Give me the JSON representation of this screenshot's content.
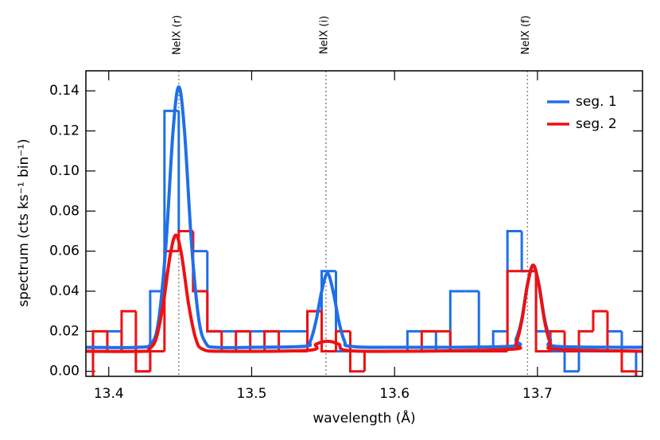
{
  "chart_data": {
    "type": "histogram",
    "xlabel": "wavelength (Å)",
    "ylabel": "spectrum (cts ks⁻¹ bin⁻¹)",
    "xlim": [
      13.384,
      13.7735
    ],
    "ylim": [
      -0.0025,
      0.15
    ],
    "xticks": [
      13.4,
      13.5,
      13.6,
      13.7
    ],
    "yticks": [
      {
        "value": 0,
        "label": "0.00"
      },
      0.02,
      0.04,
      0.06,
      0.08,
      {
        "value": 0.1,
        "label": "0.10"
      },
      0.12,
      0.14
    ],
    "legend": "upper right",
    "lines": [
      {
        "label": "NeIX (r)",
        "x": 13.449
      },
      {
        "label": "NeIX (i)",
        "x": 13.552
      },
      {
        "label": "NeIX (f)",
        "x": 13.693
      }
    ],
    "bins": [
      13.389,
      13.399,
      13.409,
      13.419,
      13.429,
      13.439,
      13.449,
      13.459,
      13.469,
      13.479,
      13.489,
      13.499,
      13.509,
      13.519,
      13.529,
      13.539,
      13.549,
      13.559,
      13.569,
      13.579,
      13.589,
      13.599,
      13.609,
      13.619,
      13.629,
      13.639,
      13.649,
      13.659,
      13.669,
      13.679,
      13.689,
      13.699,
      13.709,
      13.719,
      13.729,
      13.739,
      13.749,
      13.759,
      13.769
    ],
    "series": [
      {
        "name": "seg. 1",
        "color": "#1f6fe8",
        "values": [
          0.01,
          0.02,
          0.01,
          0,
          0.04,
          0.13,
          0.07,
          0.06,
          0.02,
          0.02,
          0.02,
          0.02,
          0.02,
          0.02,
          0.02,
          0.03,
          0.05,
          0.01,
          0.01,
          0.01,
          0.01,
          0.01,
          0.02,
          0.02,
          0.01,
          0.04,
          0.04,
          0.01,
          0.02,
          0.07,
          0.05,
          0.02,
          0.01,
          0,
          0.01,
          0.01,
          0.02,
          0.01
        ],
        "model": {
          "x": [
            13.384,
            13.42,
            13.43,
            13.435,
            13.44,
            13.445,
            13.449,
            13.453,
            13.458,
            13.463,
            13.468,
            13.475,
            13.5,
            13.537,
            13.541,
            13.545,
            13.549,
            13.553,
            13.557,
            13.561,
            13.565,
            13.569,
            13.6,
            13.681,
            13.685,
            13.689,
            13.693,
            13.697,
            13.701,
            13.705,
            13.709,
            13.713,
            13.7735
          ],
          "y": [
            0.012,
            0.012,
            0.014,
            0.026,
            0.063,
            0.12,
            0.142,
            0.12,
            0.063,
            0.026,
            0.014,
            0.012,
            0.012,
            0.0125,
            0.015,
            0.025,
            0.04,
            0.049,
            0.04,
            0.025,
            0.015,
            0.0125,
            0.012,
            0.0125,
            0.016,
            0.026,
            0.0435,
            0.053,
            0.0435,
            0.026,
            0.016,
            0.0125,
            0.012
          ]
        }
      },
      {
        "name": "seg. 2",
        "color": "#ee1111",
        "values": [
          0.02,
          0.01,
          0.03,
          0,
          0.01,
          0.06,
          0.07,
          0.04,
          0.02,
          0.01,
          0.02,
          0.01,
          0.02,
          0.01,
          0.01,
          0.03,
          0.01,
          0.02,
          0,
          0.01,
          0.01,
          0.01,
          0.01,
          0.02,
          0.02,
          0.01,
          0.01,
          0.01,
          0.01,
          0.05,
          0.05,
          0.01,
          0.02,
          0.01,
          0.02,
          0.03,
          0.01,
          0
        ],
        "model": {
          "x": [
            13.384,
            13.425,
            13.428,
            13.433,
            13.438,
            13.443,
            13.447,
            13.451,
            13.456,
            13.461,
            13.466,
            13.48,
            13.54,
            13.545,
            13.553,
            13.561,
            13.566,
            13.6,
            13.681,
            13.685,
            13.689,
            13.693,
            13.697,
            13.701,
            13.705,
            13.709,
            13.713,
            13.7735
          ],
          "y": [
            0.01,
            0.01,
            0.011,
            0.016,
            0.033,
            0.058,
            0.068,
            0.058,
            0.033,
            0.016,
            0.011,
            0.01,
            0.0105,
            0.0135,
            0.015,
            0.0135,
            0.0105,
            0.01,
            0.011,
            0.014,
            0.025,
            0.043,
            0.053,
            0.043,
            0.025,
            0.014,
            0.011,
            0.01
          ]
        }
      }
    ]
  }
}
